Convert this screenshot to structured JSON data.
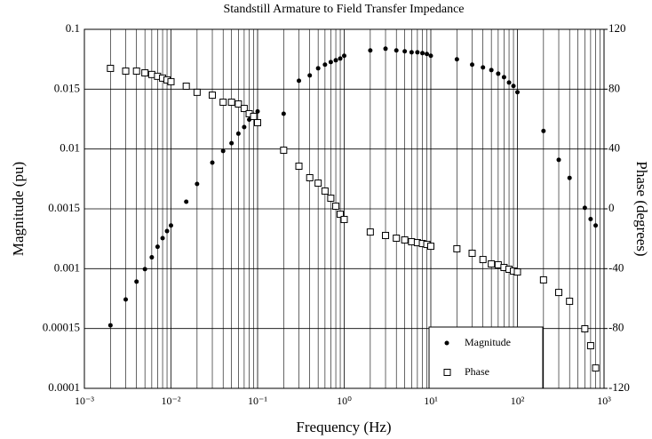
{
  "chart_data": {
    "type": "scatter",
    "title": "Standstill Armature to Field Transfer Impedance",
    "x_label": "Frequency (Hz)",
    "y_label": "Magnitude (pu)",
    "y2_label": "Phase (degrees)",
    "log_x": true,
    "grid": true,
    "legend": "lower right",
    "x": [
      0.002,
      0.003,
      0.004,
      0.005,
      0.006,
      0.007,
      0.008,
      0.009,
      0.01,
      0.015,
      0.02,
      0.03,
      0.04,
      0.05,
      0.06,
      0.07,
      0.08,
      0.09,
      0.1,
      0.2,
      0.3,
      0.4,
      0.5,
      0.6,
      0.7,
      0.8,
      0.9,
      1,
      2,
      3,
      4,
      5,
      6,
      7,
      8,
      9,
      10,
      20,
      30,
      40,
      50,
      60,
      70,
      80,
      90,
      100,
      200,
      300,
      400,
      600,
      700,
      800
    ],
    "xlim": [
      0.001,
      1000
    ],
    "xticks": [
      {
        "value": 0.001,
        "label": "10⁻³"
      },
      {
        "value": 0.01,
        "label": "10⁻²"
      },
      {
        "value": 0.1,
        "label": "10⁻¹"
      },
      {
        "value": 1,
        "label": "10⁰"
      },
      {
        "value": 10,
        "label": "10¹"
      },
      {
        "value": 100,
        "label": "10²"
      },
      {
        "value": 1000,
        "label": "10³"
      }
    ],
    "ylim": [
      0.0001,
      0.1
    ],
    "yticks": [
      0.0001,
      0.00015,
      0.001,
      0.0015,
      0.01,
      0.015,
      0.1
    ],
    "y2lim": [
      -120,
      120
    ],
    "y2ticks": [
      -120,
      -80,
      -40,
      0,
      40,
      80,
      120
    ],
    "series": [
      {
        "name": "Magnitude",
        "color": "#000000",
        "marker": "circle",
        "values": [
          0.000166,
          0.000377,
          0.000663,
          0.000984,
          0.00108,
          0.00116,
          0.00123,
          0.00129,
          0.00134,
          0.00188,
          0.0033,
          0.0065,
          0.0094,
          0.0104,
          0.0111,
          0.0116,
          0.0122,
          0.0126,
          0.0129,
          0.0127,
          0.0196,
          0.0232,
          0.0291,
          0.0326,
          0.0354,
          0.0375,
          0.0396,
          0.0432,
          0.0512,
          0.0541,
          0.0512,
          0.0498,
          0.0483,
          0.0483,
          0.047,
          0.0457,
          0.0432,
          0.0386,
          0.0326,
          0.0299,
          0.0275,
          0.0245,
          0.0219,
          0.0185,
          0.0166,
          0.0147,
          0.0113,
          0.0071,
          0.004,
          0.00155,
          0.0014,
          0.00134
        ]
      },
      {
        "name": "Phase",
        "color": "#000000",
        "marker": "square",
        "axis": "y2",
        "values": [
          93.9,
          92.1,
          92.1,
          90.9,
          89.8,
          88.6,
          87.4,
          86.2,
          85,
          82,
          77.9,
          76,
          71.3,
          71.3,
          70.1,
          67.1,
          63.6,
          61.8,
          57.6,
          39.2,
          28.5,
          20.8,
          17.2,
          11.9,
          7.1,
          1.8,
          -3.6,
          -7.1,
          -15.5,
          -17.8,
          -19.6,
          -20.8,
          -22,
          -22.6,
          -23.2,
          -23.8,
          -25,
          -26.7,
          -29.7,
          -33.9,
          -36.8,
          -37.4,
          -39.2,
          -40.4,
          -41.6,
          -42.2,
          -47.5,
          -55.9,
          -61.8,
          -80.2,
          -91.5,
          -106.4
        ]
      }
    ]
  }
}
